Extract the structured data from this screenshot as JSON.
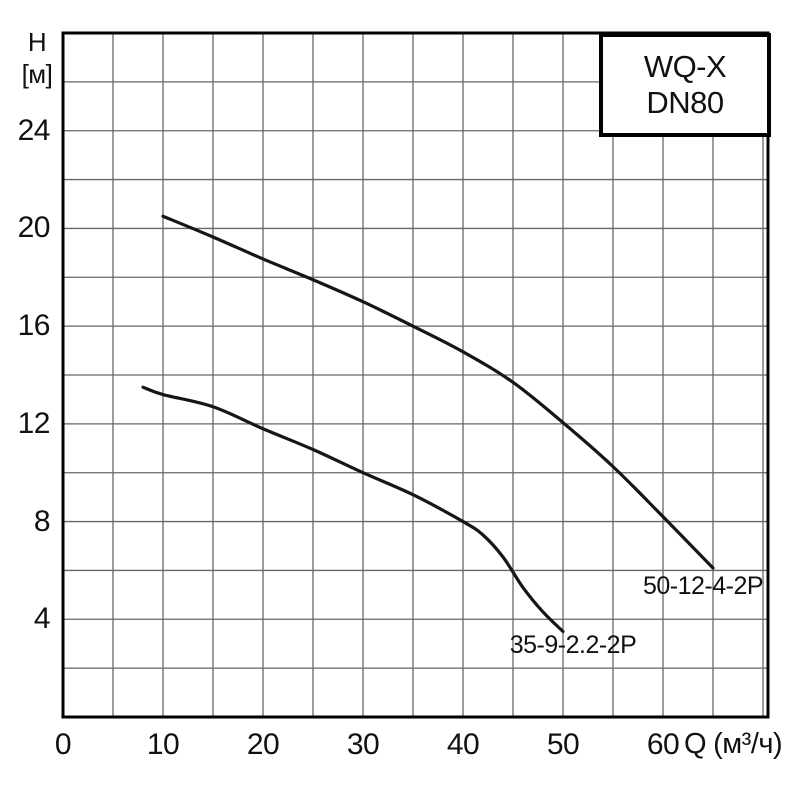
{
  "chart_data": {
    "type": "line",
    "title": "WQ-X DN80",
    "title_box_lines": [
      "WQ-X",
      "DN80"
    ],
    "xlabel": "Q (м³/ч)",
    "xlabel_name": "Q",
    "xlabel_unit": "(м³/ч)",
    "ylabel": "H [м]",
    "ylabel_name": "H",
    "ylabel_unit": "[м]",
    "xlim": [
      0,
      70.5
    ],
    "ylim": [
      0,
      28
    ],
    "xticks": [
      0,
      10,
      20,
      30,
      40,
      50,
      60
    ],
    "yticks": [
      4,
      8,
      12,
      16,
      20,
      24
    ],
    "x_grid_step": 5,
    "y_grid_step": 2,
    "grid": true,
    "legend_position": "labels-at-curve-ends",
    "series": [
      {
        "name": "50-12-4-2P",
        "label_pos": {
          "x": 64,
          "y": 5.35
        },
        "points": [
          [
            10,
            20.5
          ],
          [
            15,
            19.65
          ],
          [
            20,
            18.75
          ],
          [
            25,
            17.9
          ],
          [
            30,
            17.0
          ],
          [
            35,
            16.0
          ],
          [
            40,
            14.95
          ],
          [
            45,
            13.7
          ],
          [
            50,
            12.05
          ],
          [
            55,
            10.25
          ],
          [
            60,
            8.2
          ],
          [
            65,
            6.1
          ]
        ]
      },
      {
        "name": "35-9-2.2-2P",
        "label_pos": {
          "x": 51,
          "y": 2.95
        },
        "points": [
          [
            8,
            13.5
          ],
          [
            10,
            13.2
          ],
          [
            15,
            12.7
          ],
          [
            20,
            11.8
          ],
          [
            25,
            10.95
          ],
          [
            30,
            10.0
          ],
          [
            35,
            9.1
          ],
          [
            40,
            8.0
          ],
          [
            42,
            7.45
          ],
          [
            44,
            6.55
          ],
          [
            46,
            5.3
          ],
          [
            48,
            4.3
          ],
          [
            50,
            3.5
          ]
        ]
      }
    ],
    "colors": {
      "curve": "#161616",
      "grid": "#666666",
      "border": "#000000",
      "background": "#ffffff",
      "text": "#111111"
    }
  }
}
